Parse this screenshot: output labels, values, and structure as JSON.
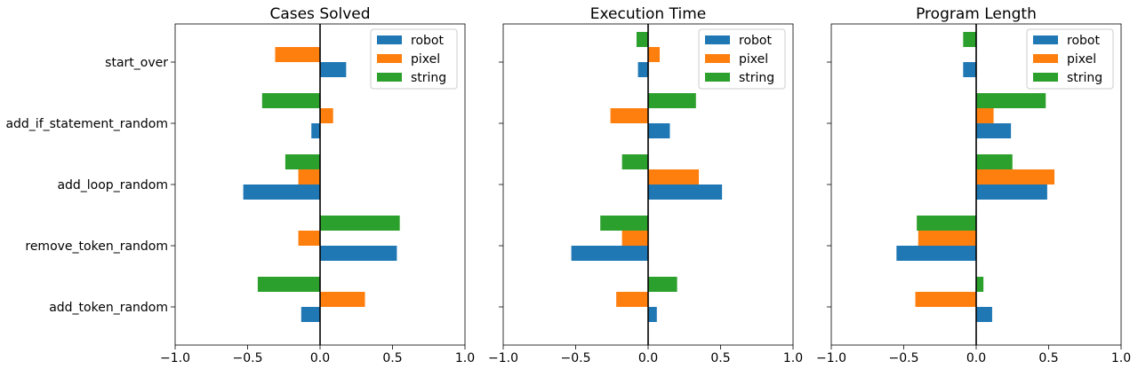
{
  "colors": {
    "robot": "#1f77b4",
    "pixel": "#ff7f0e",
    "string": "#2ca02c"
  },
  "chart_data": [
    {
      "type": "bar",
      "orientation": "horizontal",
      "title": "Cases Solved",
      "categories": [
        "add_token_random",
        "remove_token_random",
        "add_loop_random",
        "add_if_statement_random",
        "start_over"
      ],
      "xlim": [
        -1.0,
        1.0
      ],
      "xticks": [
        "−1.0",
        "−0.5",
        "0.0",
        "0.5",
        "1.0"
      ],
      "legend_position": "top-right",
      "series": [
        {
          "name": "robot",
          "values": [
            -0.13,
            0.53,
            -0.53,
            -0.06,
            0.18
          ]
        },
        {
          "name": "pixel",
          "values": [
            0.31,
            -0.15,
            -0.15,
            0.09,
            -0.31
          ]
        },
        {
          "name": "string",
          "values": [
            -0.43,
            0.55,
            -0.24,
            -0.4,
            0.0
          ]
        }
      ]
    },
    {
      "type": "bar",
      "orientation": "horizontal",
      "title": "Execution Time",
      "categories": [
        "add_token_random",
        "remove_token_random",
        "add_loop_random",
        "add_if_statement_random",
        "start_over"
      ],
      "xlim": [
        -1.0,
        1.0
      ],
      "xticks": [
        "−1.0",
        "−0.5",
        "0.0",
        "0.5",
        "1.0"
      ],
      "legend_position": "top-right",
      "series": [
        {
          "name": "robot",
          "values": [
            0.06,
            -0.53,
            0.51,
            0.15,
            -0.07
          ]
        },
        {
          "name": "pixel",
          "values": [
            -0.22,
            -0.18,
            0.35,
            -0.26,
            0.08
          ]
        },
        {
          "name": "string",
          "values": [
            0.2,
            -0.33,
            -0.18,
            0.33,
            -0.08
          ]
        }
      ]
    },
    {
      "type": "bar",
      "orientation": "horizontal",
      "title": "Program Length",
      "categories": [
        "add_token_random",
        "remove_token_random",
        "add_loop_random",
        "add_if_statement_random",
        "start_over"
      ],
      "xlim": [
        -1.0,
        1.0
      ],
      "xticks": [
        "−1.0",
        "−0.5",
        "0.0",
        "0.5",
        "1.0"
      ],
      "legend_position": "top-right",
      "series": [
        {
          "name": "robot",
          "values": [
            0.11,
            -0.55,
            0.49,
            0.24,
            -0.09
          ]
        },
        {
          "name": "pixel",
          "values": [
            -0.42,
            -0.4,
            0.54,
            0.12,
            0.0
          ]
        },
        {
          "name": "string",
          "values": [
            0.05,
            -0.41,
            0.25,
            0.48,
            -0.09
          ]
        }
      ]
    }
  ]
}
